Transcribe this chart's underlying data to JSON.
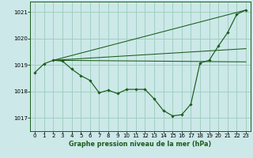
{
  "title": "Graphe pression niveau de la mer (hPa)",
  "bg_color": "#cce8e8",
  "grid_color": "#99ccbb",
  "line_color": "#1a5c1a",
  "marker_color": "#1a5c1a",
  "xlim": [
    -0.5,
    23.5
  ],
  "ylim": [
    1016.5,
    1021.4
  ],
  "yticks": [
    1017,
    1018,
    1019,
    1020,
    1021
  ],
  "xticks": [
    0,
    1,
    2,
    3,
    4,
    5,
    6,
    7,
    8,
    9,
    10,
    11,
    12,
    13,
    14,
    15,
    16,
    17,
    18,
    19,
    20,
    21,
    22,
    23
  ],
  "main_line": [
    [
      0,
      1018.72
    ],
    [
      1,
      1019.05
    ],
    [
      2,
      1019.18
    ],
    [
      3,
      1019.15
    ],
    [
      4,
      1018.85
    ],
    [
      5,
      1018.6
    ],
    [
      6,
      1018.42
    ],
    [
      7,
      1017.95
    ],
    [
      8,
      1018.05
    ],
    [
      9,
      1017.92
    ],
    [
      10,
      1018.08
    ],
    [
      11,
      1018.08
    ],
    [
      12,
      1018.08
    ],
    [
      13,
      1017.72
    ],
    [
      14,
      1017.28
    ],
    [
      15,
      1017.08
    ],
    [
      16,
      1017.12
    ],
    [
      17,
      1017.52
    ],
    [
      18,
      1019.08
    ],
    [
      19,
      1019.18
    ],
    [
      20,
      1019.72
    ],
    [
      21,
      1020.22
    ],
    [
      22,
      1020.92
    ],
    [
      23,
      1021.08
    ]
  ],
  "ref_line1": [
    [
      2,
      1019.18
    ],
    [
      23,
      1019.12
    ]
  ],
  "ref_line2": [
    [
      2,
      1019.18
    ],
    [
      23,
      1019.62
    ]
  ],
  "ref_line3": [
    [
      2,
      1019.18
    ],
    [
      23,
      1021.08
    ]
  ]
}
